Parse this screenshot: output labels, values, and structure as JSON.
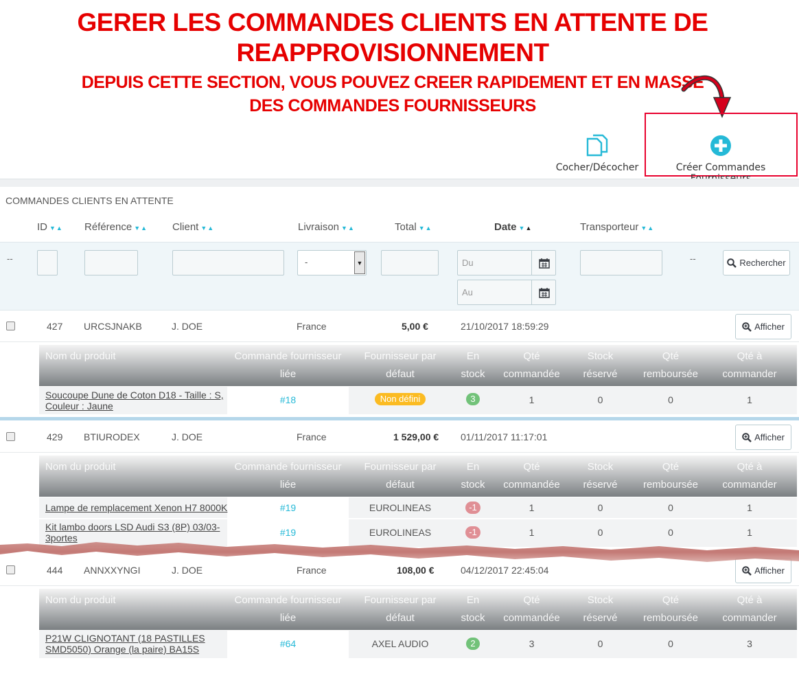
{
  "banner": {
    "title_line1": "GERER LES COMMANDES CLIENTS EN ATTENTE DE",
    "title_line2": "REAPPROVISIONNEMENT",
    "subtitle_line1": "DEPUIS CETTE SECTION, VOUS POUVEZ CREER RAPIDEMENT ET EN MASSE",
    "subtitle_line2": "DES COMMANDES FOURNISSEURS"
  },
  "toolbar": {
    "check_label": "Cocher/Décocher",
    "create_label": "Créer Commandes Fournisseurs"
  },
  "panel": {
    "title": "COMMANDES CLIENTS EN ATTENTE",
    "columns": [
      "ID",
      "Référence",
      "Client",
      "Livraison",
      "Total",
      "Date",
      "Transporteur"
    ]
  },
  "filters": {
    "id_dash": "--",
    "delivery_value": "-",
    "date_from_placeholder": "Du",
    "date_to_placeholder": "Au",
    "trailing_dash": "--",
    "search_label": "Rechercher"
  },
  "subheaders": [
    "Nom du produit",
    "Commande fournisseur liée",
    "Fournisseur par défaut",
    "En stock",
    "Qté commandée",
    "Stock réservé",
    "Qté remboursée",
    "Qté à commander"
  ],
  "view_label": "Afficher",
  "orders": [
    {
      "id": "427",
      "reference": "URCSJNAKB",
      "client": "J. DOE",
      "delivery": "France",
      "total": "5,00 €",
      "date": "21/10/2017 18:59:29",
      "products": [
        {
          "name_line1": "Soucoupe Dune de Coton D18 - Taille : S,",
          "name_line2": "Couleur : Jaune",
          "supplier_order": "#18",
          "supplier": "Non défini",
          "stock": "3",
          "ordered": "1",
          "reserved": "0",
          "refunded": "0",
          "to_order": "1"
        }
      ]
    },
    {
      "id": "429",
      "reference": "BTIURODEX",
      "client": "J. DOE",
      "delivery": "France",
      "total": "1 529,00 €",
      "date": "01/11/2017 11:17:01",
      "products": [
        {
          "name_line1": "Lampe de remplacement Xenon H7 8000K",
          "name_line2": "",
          "supplier_order": "#19",
          "supplier": "EUROLINEAS",
          "stock": "-1",
          "ordered": "1",
          "reserved": "0",
          "refunded": "0",
          "to_order": "1"
        },
        {
          "name_line1": "Kit lambo doors LSD Audi S3 (8P) 03/03-",
          "name_line2": "3portes",
          "supplier_order": "#19",
          "supplier": "EUROLINEAS",
          "stock": "-1",
          "ordered": "1",
          "reserved": "0",
          "refunded": "0",
          "to_order": "1"
        }
      ]
    },
    {
      "id": "444",
      "reference": "ANNXXYNGI",
      "client": "J. DOE",
      "delivery": "France",
      "total": "108,00 €",
      "date": "04/12/2017 22:45:04",
      "products": [
        {
          "name_line1": "P21W CLIGNOTANT (18 PASTILLES",
          "name_line2": "SMD5050) Orange (la paire) BA15S",
          "supplier_order": "#64",
          "supplier": "AXEL AUDIO",
          "stock": "2",
          "ordered": "3",
          "reserved": "0",
          "refunded": "0",
          "to_order": "3"
        }
      ]
    }
  ],
  "colors": {
    "accent": "#25b9d7",
    "danger": "#e60000",
    "badge_warning": "#fbbb22",
    "badge_success": "#72c279",
    "badge_danger": "#e08f95"
  },
  "icons": {
    "check_tool": "copy-icon",
    "create_tool": "plus-circle-icon",
    "calendar": "calendar-icon",
    "search": "search-icon",
    "view": "zoom-in-icon"
  }
}
